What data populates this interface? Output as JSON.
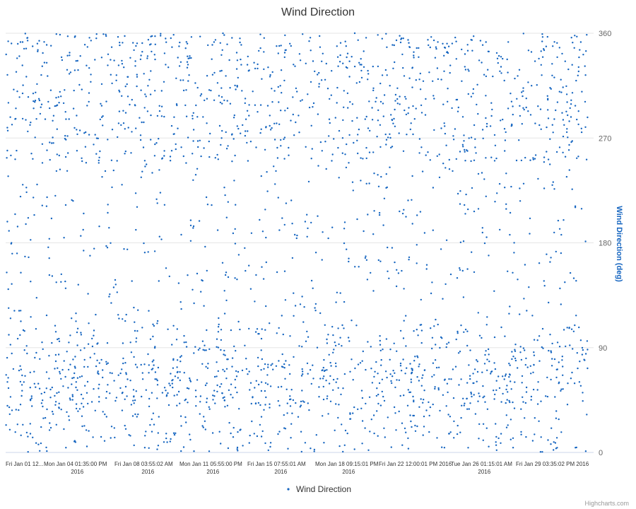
{
  "chart_data": {
    "type": "scatter",
    "title": "Wind Direction",
    "ylabel": "Wind Direction (deg)",
    "ylim": [
      0,
      360
    ],
    "yticks": [
      0,
      90,
      180,
      270,
      360
    ],
    "xlabels": [
      [
        "Fri Jan 01 12...",
        ""
      ],
      [
        "Mon Jan 04 01:35:00 PM",
        "2016"
      ],
      [
        "Fri Jan 08 03:55:02 AM",
        "2016"
      ],
      [
        "Mon Jan 11 05:55:00 PM",
        "2016"
      ],
      [
        "Fri Jan 15 07:55:01 AM",
        "2016"
      ],
      [
        "Mon Jan 18 09:15:01 PM",
        "2016"
      ],
      [
        "Fri Jan 22 12:00:01 PM 2016",
        ""
      ],
      [
        "Tue Jan 26 01:15:01 AM",
        "2016"
      ],
      [
        "Fri Jan 29 03:35:02 PM 2016",
        ""
      ]
    ],
    "x_range_days": [
      0,
      30
    ],
    "grid": true,
    "legend_position": "bottom-center",
    "series": [
      {
        "name": "Wind Direction",
        "color": "#1565c0",
        "marker": "dot"
      }
    ],
    "credits": "Highcharts.com"
  }
}
